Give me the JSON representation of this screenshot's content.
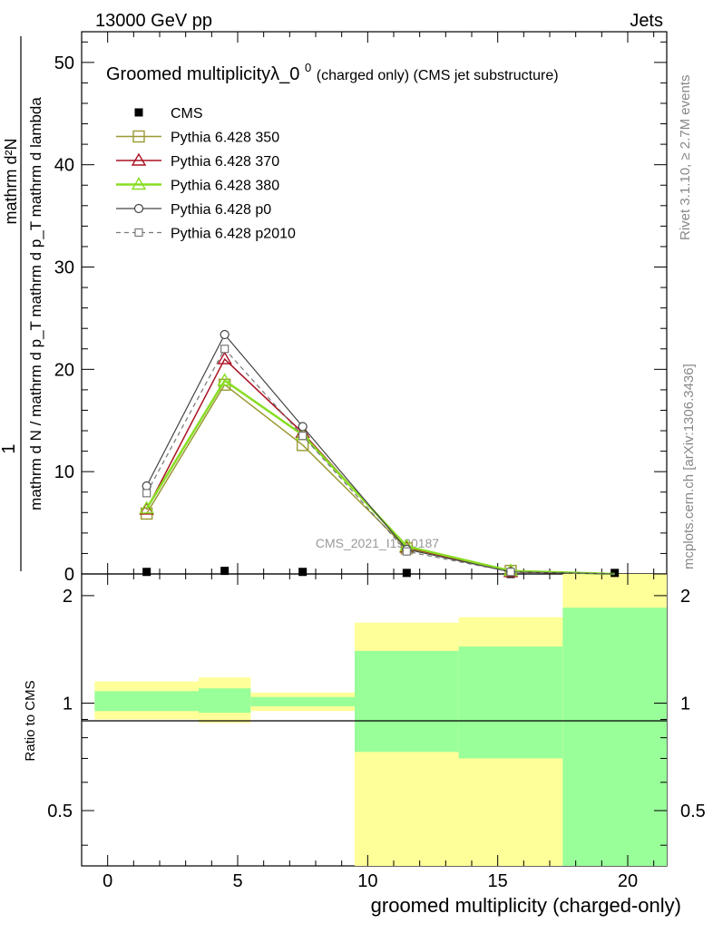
{
  "header": {
    "left": "13000 GeV pp",
    "right": "Jets"
  },
  "side_labels": {
    "rivet": "Rivet 3.1.10, ≥ 2.7M events",
    "mcplots": "mcplots.cern.ch [arXiv:1306.3436]"
  },
  "watermark": "CMS_2021_I1920187",
  "plot_title": {
    "main": "Groomed multiplicityλ_0",
    "sup": "0",
    "sub": " (charged only) (CMS jet substructure)"
  },
  "ylabel_main": {
    "top": "mathrm d²N",
    "bottom": "mathrm d N / mathrm d p_T mathrm d p_T mathrm d lambda",
    "one": "1"
  },
  "ylabel_ratio": "Ratio to CMS",
  "xlabel": "groomed multiplicity (charged-only)",
  "colors": {
    "p350": "#999933",
    "p370": "#aa1122",
    "p380": "#88dd22",
    "p0": "#444444",
    "p2010": "#777777",
    "band_yellow": "#ffff99",
    "band_green": "#99ff99"
  },
  "chart_data": {
    "type": "line",
    "xlabel": "groomed multiplicity (charged-only)",
    "x": [
      1.5,
      4.5,
      7.5,
      11.5,
      15.5,
      19.5
    ],
    "xlim": [
      -1,
      21.5
    ],
    "ylim_main": [
      0,
      53
    ],
    "xticks": [
      "0",
      "5",
      "10",
      "15",
      "20"
    ],
    "yticks_main": [
      "0",
      "10",
      "20",
      "30",
      "40",
      "50"
    ],
    "series": [
      {
        "name": "CMS",
        "values": [
          0.2,
          0.3,
          0.2,
          0.1,
          0.0,
          0.1
        ]
      },
      {
        "name": "Pythia 6.428 350",
        "values": [
          5.9,
          18.5,
          12.6,
          2.5,
          0.3,
          0.0
        ]
      },
      {
        "name": "Pythia 6.428 370",
        "values": [
          6.3,
          21.0,
          13.8,
          2.6,
          0.2,
          0.0
        ]
      },
      {
        "name": "Pythia 6.428 380",
        "values": [
          6.4,
          18.9,
          13.6,
          2.7,
          0.3,
          0.0
        ]
      },
      {
        "name": "Pythia 6.428 p0",
        "values": [
          8.6,
          23.4,
          14.4,
          2.4,
          0.2,
          0.0
        ]
      },
      {
        "name": "Pythia 6.428 p2010",
        "values": [
          7.9,
          22.0,
          13.5,
          2.2,
          0.2,
          0.0
        ]
      }
    ],
    "ratio": {
      "ylim": [
        0.35,
        2.3
      ],
      "yticks": [
        "0.5",
        "1",
        "2"
      ],
      "bins": [
        {
          "lo": -0.5,
          "hi": 3.5,
          "green": [
            0.95,
            1.08
          ],
          "yellow": [
            0.9,
            1.15
          ]
        },
        {
          "lo": 3.5,
          "hi": 5.5,
          "green": [
            0.94,
            1.1
          ],
          "yellow": [
            0.88,
            1.18
          ]
        },
        {
          "lo": 5.5,
          "hi": 9.5,
          "green": [
            0.98,
            1.04
          ],
          "yellow": [
            0.95,
            1.07
          ]
        },
        {
          "lo": 9.5,
          "hi": 13.5,
          "green": [
            0.73,
            1.4
          ],
          "yellow": [
            0.35,
            1.68
          ]
        },
        {
          "lo": 13.5,
          "hi": 17.5,
          "green": [
            0.7,
            1.44
          ],
          "yellow": [
            0.35,
            1.74
          ]
        },
        {
          "lo": 17.5,
          "hi": 21.5,
          "green": [
            0.35,
            1.85
          ],
          "yellow": [
            0.35,
            2.3
          ]
        }
      ]
    }
  }
}
